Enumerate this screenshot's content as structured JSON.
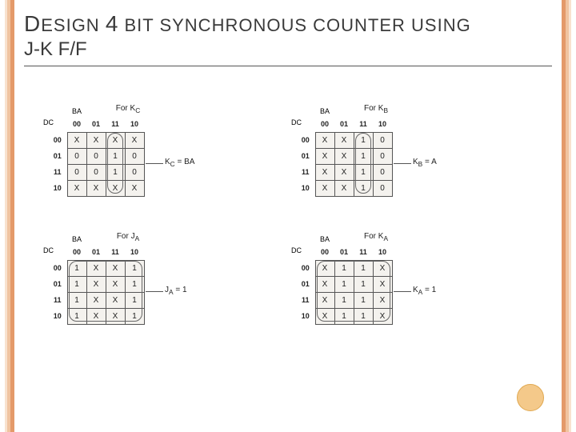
{
  "colors": {
    "border_dark": "#e49a6a",
    "border_mid": "#f0c4a0",
    "border_light": "#f8e2cf",
    "underline": "#555555",
    "cell_border": "#555555",
    "cell_bg": "#f4f2ee",
    "text": "#3a3a3a",
    "circle_fill": "#f4c98a",
    "circle_stroke": "#e0a850"
  },
  "title": {
    "line1_parts": [
      "D",
      "ESIGN ",
      "4",
      " BIT SYNCHRONOUS COUNTER USING"
    ],
    "line2": "J-K  F/F"
  },
  "col_headers": [
    "00",
    "01",
    "11",
    "10"
  ],
  "row_headers": [
    "00",
    "01",
    "11",
    "10"
  ],
  "kmaps": [
    {
      "title": "For K",
      "title_sub": "C",
      "var_top": "BA",
      "var_left": "DC",
      "cells": [
        [
          "X",
          "X",
          "X",
          "X"
        ],
        [
          "0",
          "0",
          "1",
          "0"
        ],
        [
          "0",
          "0",
          "1",
          "0"
        ],
        [
          "X",
          "X",
          "X",
          "X"
        ]
      ],
      "equation": "K",
      "equation_sub": "C",
      "equation_rhs": " = BA",
      "group": {
        "col": 2,
        "row": 0,
        "w": 1,
        "h": 4
      }
    },
    {
      "title": "For K",
      "title_sub": "B",
      "var_top": "BA",
      "var_left": "DC",
      "cells": [
        [
          "X",
          "X",
          "1",
          "0"
        ],
        [
          "X",
          "X",
          "1",
          "0"
        ],
        [
          "X",
          "X",
          "1",
          "0"
        ],
        [
          "X",
          "X",
          "1",
          "0"
        ]
      ],
      "equation": "K",
      "equation_sub": "B",
      "equation_rhs": " = A",
      "group": {
        "col": 2,
        "row": 0,
        "w": 1,
        "h": 4
      }
    },
    {
      "title": "For J",
      "title_sub": "A",
      "var_top": "BA",
      "var_left": "DC",
      "cells": [
        [
          "1",
          "X",
          "X",
          "1"
        ],
        [
          "1",
          "X",
          "X",
          "1"
        ],
        [
          "1",
          "X",
          "X",
          "1"
        ],
        [
          "1",
          "X",
          "X",
          "1"
        ]
      ],
      "equation": "J",
      "equation_sub": "A",
      "equation_rhs": " = 1",
      "group": {
        "col": 0,
        "row": 0,
        "w": 4,
        "h": 4
      }
    },
    {
      "title": "For K",
      "title_sub": "A",
      "var_top": "BA",
      "var_left": "DC",
      "cells": [
        [
          "X",
          "1",
          "1",
          "X"
        ],
        [
          "X",
          "1",
          "1",
          "X"
        ],
        [
          "X",
          "1",
          "1",
          "X"
        ],
        [
          "X",
          "1",
          "1",
          "X"
        ]
      ],
      "equation": "K",
      "equation_sub": "A",
      "equation_rhs": " = 1",
      "group": {
        "col": 0,
        "row": 0,
        "w": 4,
        "h": 4
      }
    }
  ]
}
